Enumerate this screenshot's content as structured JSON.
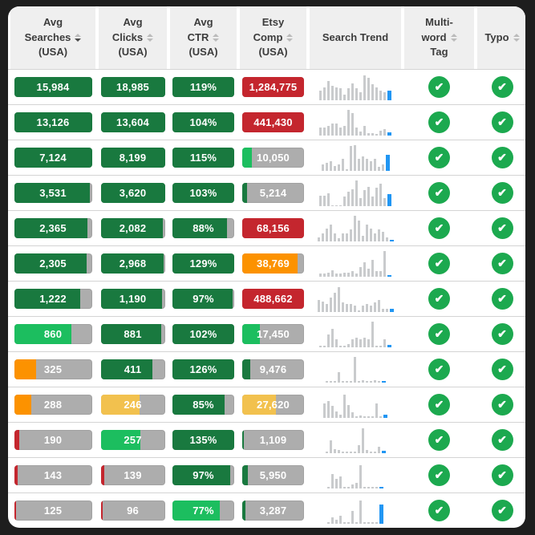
{
  "colors": {
    "frame": "#1E1E1E",
    "card": "#FFFFFF",
    "header_bg": "#EFEFEF",
    "header_text": "#3C3C3C",
    "row_divider": "#D4D4D4",
    "bar_gray": "#ADADAD",
    "dark_green": "#19793F",
    "bright_green": "#1CBE5F",
    "orange": "#FC9200",
    "amber": "#F2C14E",
    "red": "#C4262E",
    "bar_text": "#FFFFFF",
    "trend_gray": "#C9CBCD",
    "trend_blue": "#2196F3",
    "check_green": "#1CA94F"
  },
  "icons": {
    "check_glyph": "✔",
    "sort_icon_name": "sort-arrows-icon"
  },
  "header": {
    "columns": [
      {
        "id": "avg_searches",
        "lines": [
          "Avg",
          "Searches",
          "(USA)"
        ],
        "icon_line": 1,
        "sort": "desc"
      },
      {
        "id": "avg_clicks",
        "lines": [
          "Avg",
          "Clicks",
          "(USA)"
        ],
        "icon_line": 1,
        "sort": "unsorted"
      },
      {
        "id": "avg_ctr",
        "lines": [
          "Avg",
          "CTR",
          "(USA)"
        ],
        "icon_line": 1,
        "sort": "unsorted"
      },
      {
        "id": "etsy_comp",
        "lines": [
          "Etsy",
          "Comp",
          "(USA)"
        ],
        "icon_line": 1,
        "sort": "unsorted"
      },
      {
        "id": "search_trend",
        "lines": [
          "Search Trend"
        ],
        "icon_line": -1,
        "sort": "none"
      },
      {
        "id": "multi_word_tag",
        "lines": [
          "Multi-",
          "word",
          "Tag"
        ],
        "icon_line": 1,
        "sort": "unsorted"
      },
      {
        "id": "typo",
        "lines": [
          "Typo"
        ],
        "icon_line": 0,
        "sort": "unsorted"
      }
    ]
  },
  "rows": [
    {
      "avg_searches": {
        "value": "15,984",
        "fill_pct": 100,
        "color": "dark_green"
      },
      "avg_clicks": {
        "value": "18,985",
        "fill_pct": 100,
        "color": "dark_green"
      },
      "avg_ctr": {
        "value": "119%",
        "fill_pct": 100,
        "color": "dark_green"
      },
      "etsy_comp": {
        "value": "1,284,775",
        "fill_pct": 100,
        "color": "red"
      },
      "trend": {
        "bars": [
          35,
          50,
          75,
          55,
          50,
          45,
          20,
          45,
          65,
          45,
          30,
          95,
          85,
          60,
          50,
          35,
          30
        ],
        "current": 35
      },
      "multi_word_tag": "yes",
      "typo": "yes"
    },
    {
      "avg_searches": {
        "value": "13,126",
        "fill_pct": 100,
        "color": "dark_green"
      },
      "avg_clicks": {
        "value": "13,604",
        "fill_pct": 100,
        "color": "dark_green"
      },
      "avg_ctr": {
        "value": "104%",
        "fill_pct": 100,
        "color": "dark_green"
      },
      "etsy_comp": {
        "value": "441,430",
        "fill_pct": 100,
        "color": "red"
      },
      "trend": {
        "bars": [
          30,
          30,
          35,
          45,
          45,
          30,
          35,
          100,
          85,
          30,
          15,
          35,
          8,
          8,
          5,
          18,
          25
        ],
        "current": 12
      },
      "multi_word_tag": "yes",
      "typo": "yes"
    },
    {
      "avg_searches": {
        "value": "7,124",
        "fill_pct": 100,
        "color": "dark_green"
      },
      "avg_clicks": {
        "value": "8,199",
        "fill_pct": 100,
        "color": "dark_green"
      },
      "avg_ctr": {
        "value": "115%",
        "fill_pct": 100,
        "color": "dark_green"
      },
      "etsy_comp": {
        "value": "10,050",
        "fill_pct": 16,
        "color": "bright_green"
      },
      "trend": {
        "bars": [
          25,
          30,
          35,
          18,
          25,
          45,
          5,
          95,
          100,
          45,
          55,
          45,
          35,
          45,
          15,
          25
        ],
        "current": 60
      },
      "multi_word_tag": "yes",
      "typo": "yes"
    },
    {
      "avg_searches": {
        "value": "3,531",
        "fill_pct": 97,
        "color": "dark_green"
      },
      "avg_clicks": {
        "value": "3,620",
        "fill_pct": 100,
        "color": "dark_green"
      },
      "avg_ctr": {
        "value": "103%",
        "fill_pct": 100,
        "color": "dark_green"
      },
      "etsy_comp": {
        "value": "5,214",
        "fill_pct": 8,
        "color": "dark_green"
      },
      "trend": {
        "bars": [
          40,
          40,
          50,
          3,
          3,
          3,
          35,
          55,
          65,
          100,
          30,
          60,
          75,
          35,
          70,
          85,
          30
        ],
        "current": 45
      },
      "multi_word_tag": "yes",
      "typo": "yes"
    },
    {
      "avg_searches": {
        "value": "2,365",
        "fill_pct": 94,
        "color": "dark_green"
      },
      "avg_clicks": {
        "value": "2,082",
        "fill_pct": 97,
        "color": "dark_green"
      },
      "avg_ctr": {
        "value": "88%",
        "fill_pct": 88,
        "color": "dark_green"
      },
      "etsy_comp": {
        "value": "68,156",
        "fill_pct": 100,
        "color": "red"
      },
      "trend": {
        "bars": [
          15,
          30,
          50,
          65,
          30,
          10,
          30,
          30,
          45,
          100,
          80,
          20,
          65,
          50,
          30,
          45,
          35,
          15
        ],
        "current": 6
      },
      "multi_word_tag": "yes",
      "typo": "yes"
    },
    {
      "avg_searches": {
        "value": "2,305",
        "fill_pct": 93,
        "color": "dark_green"
      },
      "avg_clicks": {
        "value": "2,968",
        "fill_pct": 98,
        "color": "dark_green"
      },
      "avg_ctr": {
        "value": "129%",
        "fill_pct": 100,
        "color": "dark_green"
      },
      "etsy_comp": {
        "value": "38,769",
        "fill_pct": 90,
        "color": "orange"
      },
      "trend": {
        "bars": [
          10,
          10,
          15,
          25,
          10,
          10,
          15,
          15,
          20,
          10,
          35,
          55,
          30,
          65,
          20,
          20,
          100
        ],
        "current": 5
      },
      "multi_word_tag": "yes",
      "typo": "yes"
    },
    {
      "avg_searches": {
        "value": "1,222",
        "fill_pct": 85,
        "color": "dark_green"
      },
      "avg_clicks": {
        "value": "1,190",
        "fill_pct": 96,
        "color": "dark_green"
      },
      "avg_ctr": {
        "value": "97%",
        "fill_pct": 97,
        "color": "dark_green"
      },
      "etsy_comp": {
        "value": "488,662",
        "fill_pct": 100,
        "color": "red"
      },
      "trend": {
        "bars": [
          45,
          40,
          30,
          55,
          75,
          95,
          35,
          30,
          30,
          25,
          5,
          25,
          30,
          25,
          35,
          45,
          10,
          10
        ],
        "current": 10
      },
      "multi_word_tag": "yes",
      "typo": "yes"
    },
    {
      "avg_searches": {
        "value": "860",
        "fill_pct": 74,
        "color": "bright_green"
      },
      "avg_clicks": {
        "value": "881",
        "fill_pct": 94,
        "color": "dark_green"
      },
      "avg_ctr": {
        "value": "102%",
        "fill_pct": 100,
        "color": "dark_green"
      },
      "etsy_comp": {
        "value": "17,450",
        "fill_pct": 28,
        "color": "bright_green"
      },
      "trend": {
        "bars": [
          5,
          5,
          50,
          70,
          30,
          5,
          5,
          10,
          30,
          35,
          30,
          35,
          30,
          100,
          5,
          5,
          30
        ],
        "current": 8
      },
      "multi_word_tag": "yes",
      "typo": "yes"
    },
    {
      "avg_searches": {
        "value": "325",
        "fill_pct": 28,
        "color": "orange"
      },
      "avg_clicks": {
        "value": "411",
        "fill_pct": 81,
        "color": "dark_green"
      },
      "avg_ctr": {
        "value": "126%",
        "fill_pct": 100,
        "color": "dark_green"
      },
      "etsy_comp": {
        "value": "9,476",
        "fill_pct": 13,
        "color": "dark_green"
      },
      "trend": {
        "bars": [
          4,
          4,
          4,
          40,
          4,
          4,
          4,
          100,
          4,
          8,
          4,
          4,
          8,
          4
        ],
        "current": 5
      },
      "multi_word_tag": "yes",
      "typo": "yes"
    },
    {
      "avg_searches": {
        "value": "288",
        "fill_pct": 22,
        "color": "orange"
      },
      "avg_clicks": {
        "value": "246",
        "fill_pct": 60,
        "color": "amber"
      },
      "avg_ctr": {
        "value": "85%",
        "fill_pct": 85,
        "color": "dark_green"
      },
      "etsy_comp": {
        "value": "27,620",
        "fill_pct": 55,
        "color": "amber"
      },
      "trend": {
        "bars": [
          55,
          65,
          45,
          25,
          10,
          90,
          50,
          20,
          5,
          8,
          4,
          4,
          4,
          55,
          4
        ],
        "current": 12
      },
      "multi_word_tag": "yes",
      "typo": "yes"
    },
    {
      "avg_searches": {
        "value": "190",
        "fill_pct": 7,
        "color": "red"
      },
      "avg_clicks": {
        "value": "257",
        "fill_pct": 62,
        "color": "bright_green"
      },
      "avg_ctr": {
        "value": "135%",
        "fill_pct": 100,
        "color": "dark_green"
      },
      "etsy_comp": {
        "value": "1,109",
        "fill_pct": 3,
        "color": "dark_green"
      },
      "trend": {
        "bars": [
          4,
          50,
          15,
          10,
          4,
          4,
          4,
          4,
          30,
          95,
          10,
          4,
          4,
          25
        ],
        "current": 8
      },
      "multi_word_tag": "yes",
      "typo": "yes"
    },
    {
      "avg_searches": {
        "value": "143",
        "fill_pct": 5,
        "color": "red"
      },
      "avg_clicks": {
        "value": "139",
        "fill_pct": 5,
        "color": "red"
      },
      "avg_ctr": {
        "value": "97%",
        "fill_pct": 94,
        "color": "dark_green"
      },
      "etsy_comp": {
        "value": "5,950",
        "fill_pct": 9,
        "color": "dark_green"
      },
      "trend": {
        "bars": [
          4,
          55,
          35,
          45,
          4,
          4,
          15,
          20,
          90,
          4,
          4,
          4,
          4
        ],
        "current": 6
      },
      "multi_word_tag": "yes",
      "typo": "yes"
    },
    {
      "avg_searches": {
        "value": "125",
        "fill_pct": 3,
        "color": "red"
      },
      "avg_clicks": {
        "value": "96",
        "fill_pct": 3,
        "color": "red"
      },
      "avg_ctr": {
        "value": "77%",
        "fill_pct": 77,
        "color": "bright_green"
      },
      "etsy_comp": {
        "value": "3,287",
        "fill_pct": 5,
        "color": "dark_green"
      },
      "trend": {
        "bars": [
          4,
          25,
          15,
          30,
          4,
          4,
          50,
          4,
          90,
          4,
          4,
          4,
          4
        ],
        "current": 75
      },
      "multi_word_tag": "yes",
      "typo": "yes"
    }
  ]
}
